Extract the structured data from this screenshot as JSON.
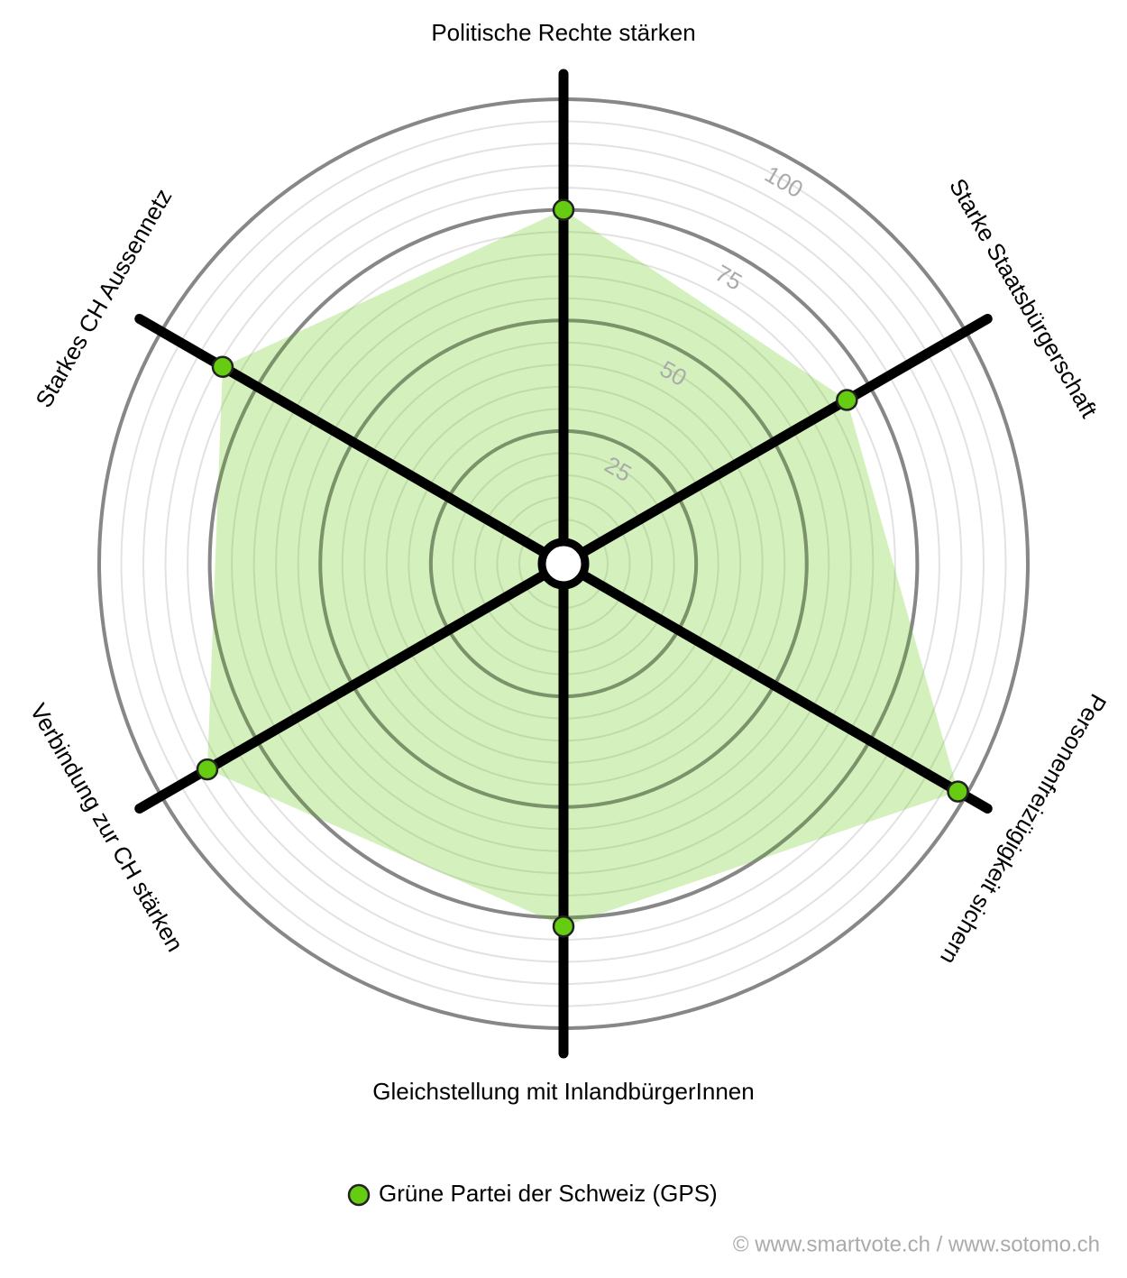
{
  "chart_data": {
    "type": "radar",
    "categories": [
      "Politische Rechte stärken",
      "Starke Staatsbürgerschaft",
      "Personenfreizügigkeit sichern",
      "Gleichstellung mit InlandbürgerInnen",
      "Verbindung zur CH stärken",
      "Starkes CH Aussennetz"
    ],
    "series": [
      {
        "name": "Grüne Partei der Schweiz (GPS)",
        "color": "#66cc11",
        "values": [
          75,
          69,
          98,
          77,
          88,
          84
        ]
      }
    ],
    "ylim": [
      -5,
      100
    ],
    "yticks": [
      25,
      50,
      75,
      100
    ],
    "credit": "© www.smartvote.ch / www.sotomo.ch"
  }
}
